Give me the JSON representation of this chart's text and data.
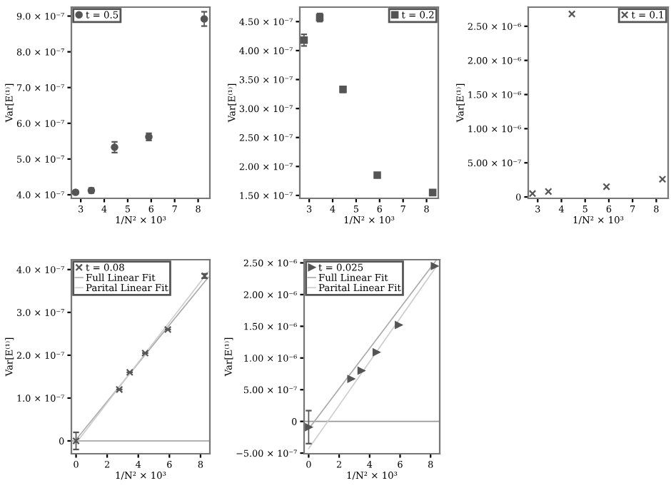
{
  "chart_data": [
    {
      "type": "scatter",
      "xlabel": "1/N² × 10³",
      "ylabel": "Var[E⁽¹⁾]",
      "xlim": [
        2.6,
        8.5
      ],
      "ylim": [
        3.9e-07,
        9.25e-07
      ],
      "xticks": [
        3,
        4,
        5,
        6,
        7,
        8
      ],
      "yticks": [
        {
          "value": 4e-07,
          "label": "4.0 × 10⁻⁷"
        },
        {
          "value": 5e-07,
          "label": "5.0 × 10⁻⁷"
        },
        {
          "value": 6e-07,
          "label": "6.0 × 10⁻⁷"
        },
        {
          "value": 7e-07,
          "label": "7.0 × 10⁻⁷"
        },
        {
          "value": 8e-07,
          "label": "8.0 × 10⁻⁷"
        },
        {
          "value": 9e-07,
          "label": "9.0 × 10⁻⁷"
        }
      ],
      "legend": "top left",
      "grid": false,
      "series": [
        {
          "name": "t = 0.5",
          "color": "#555555",
          "marker": "circle",
          "x": [
            2.78,
            3.45,
            4.44,
            5.9,
            8.26
          ],
          "values": [
            4.07e-07,
            4.12e-07,
            5.33e-07,
            5.62e-07,
            8.92e-07
          ],
          "errors": [
            5e-09,
            7e-09,
            1.5e-08,
            1e-08,
            2e-08
          ]
        }
      ]
    },
    {
      "type": "scatter",
      "xlabel": "1/N² × 10³",
      "ylabel": "Var[E⁽¹⁾]",
      "xlim": [
        2.6,
        8.5
      ],
      "ylim": [
        1.45e-07,
        4.75e-07
      ],
      "xticks": [
        3,
        4,
        5,
        6,
        7,
        8
      ],
      "yticks": [
        {
          "value": 1.5e-07,
          "label": "1.50 × 10⁻⁷"
        },
        {
          "value": 2e-07,
          "label": "2.00 × 10⁻⁷"
        },
        {
          "value": 2.5e-07,
          "label": "2.50 × 10⁻⁷"
        },
        {
          "value": 3e-07,
          "label": "3.00 × 10⁻⁷"
        },
        {
          "value": 3.5e-07,
          "label": "3.50 × 10⁻⁷"
        },
        {
          "value": 4e-07,
          "label": "4.00 × 10⁻⁷"
        },
        {
          "value": 4.5e-07,
          "label": "4.50 × 10⁻⁷"
        }
      ],
      "legend": "top right",
      "grid": false,
      "series": [
        {
          "name": "t = 0.2",
          "color": "#555555",
          "marker": "square",
          "x": [
            2.78,
            3.45,
            4.44,
            5.9,
            8.26
          ],
          "values": [
            4.18e-07,
            4.57e-07,
            3.33e-07,
            1.85e-07,
            1.55e-07
          ],
          "errors": [
            1e-08,
            7e-09,
            5e-09,
            2e-09,
            2e-09
          ]
        }
      ]
    },
    {
      "type": "scatter",
      "xlabel": "1/N² × 10³",
      "ylabel": "Var[E⁽¹⁾]",
      "xlim": [
        2.6,
        8.5
      ],
      "ylim": [
        -2e-08,
        2.78e-06
      ],
      "xticks": [
        3,
        4,
        5,
        6,
        7,
        8
      ],
      "yticks": [
        0,
        {
          "value": 5e-07,
          "label": "5.00 × 10⁻⁷"
        },
        {
          "value": 1e-06,
          "label": "1.00 × 10⁻⁶"
        },
        {
          "value": 1.5e-06,
          "label": "1.50 × 10⁻⁶"
        },
        {
          "value": 2e-06,
          "label": "2.00 × 10⁻⁶"
        },
        {
          "value": 2.5e-06,
          "label": "2.50 × 10⁻⁶"
        }
      ],
      "legend": "top right",
      "grid": false,
      "series": [
        {
          "name": "t = 0.1",
          "color": "#555555",
          "marker": "cross",
          "x": [
            2.78,
            3.45,
            4.44,
            5.9,
            8.26
          ],
          "values": [
            5e-08,
            8e-08,
            2.68e-06,
            1.5e-07,
            2.6e-07
          ]
        }
      ]
    },
    {
      "type": "scatter",
      "xlabel": "1/N² × 10³",
      "ylabel": "Var[E⁽¹⁾]",
      "xlim": [
        -0.3,
        8.6
      ],
      "ylim": [
        -3e-08,
        4.23e-07
      ],
      "xticks": [
        0,
        2,
        4,
        6,
        8
      ],
      "yticks": [
        0,
        {
          "value": 1e-07,
          "label": "1.0 × 10⁻⁷"
        },
        {
          "value": 2e-07,
          "label": "2.0 × 10⁻⁷"
        },
        {
          "value": 3e-07,
          "label": "3.0 × 10⁻⁷"
        },
        {
          "value": 4e-07,
          "label": "4.0 × 10⁻⁷"
        }
      ],
      "legend": "top left",
      "grid": false,
      "ref_lines": [
        {
          "axis": "y",
          "value": 0,
          "color": "#999999"
        }
      ],
      "series": [
        {
          "name": "t = 0.08",
          "color": "#555555",
          "marker": "cross",
          "x": [
            0,
            2.78,
            3.45,
            4.44,
            5.9,
            8.26
          ],
          "values": [
            0,
            1.2e-07,
            1.6e-07,
            2.05e-07,
            2.6e-07,
            3.85e-07
          ],
          "errors": [
            2e-08,
            null,
            null,
            null,
            null,
            5e-09
          ]
        },
        {
          "name": "Full Linear Fit",
          "type": "line",
          "color": "#aaaaaa",
          "x": [
            0,
            8.5
          ],
          "values": [
            3e-09,
            3.82e-07
          ]
        },
        {
          "name": "Parital Linear Fit",
          "type": "line",
          "color": "#cccccc",
          "x": [
            0,
            8.5
          ],
          "values": [
            -5e-09,
            3.95e-07
          ]
        }
      ]
    },
    {
      "type": "scatter",
      "xlabel": "1/N² × 10³",
      "ylabel": "Var[E⁽¹⁾]",
      "xlim": [
        -0.3,
        8.6
      ],
      "ylim": [
        -5.1e-07,
        2.55e-06
      ],
      "xticks": [
        0,
        2,
        4,
        6,
        8
      ],
      "yticks": [
        {
          "value": -5e-07,
          "label": "−5.00 × 10⁻⁷"
        },
        0,
        {
          "value": 5e-07,
          "label": "5.00 × 10⁻⁷"
        },
        {
          "value": 1e-06,
          "label": "1.00 × 10⁻⁶"
        },
        {
          "value": 1.5e-06,
          "label": "1.50 × 10⁻⁶"
        },
        {
          "value": 2e-06,
          "label": "2.00 × 10⁻⁶"
        },
        {
          "value": 2.5e-06,
          "label": "2.50 × 10⁻⁶"
        }
      ],
      "legend": "top left",
      "grid": false,
      "ref_lines": [
        {
          "axis": "y",
          "value": 0,
          "color": "#999999"
        }
      ],
      "series": [
        {
          "name": "t = 0.025",
          "color": "#555555",
          "marker": "triangle",
          "x": [
            0,
            2.78,
            3.45,
            4.44,
            5.9,
            8.26
          ],
          "values": [
            -9e-08,
            6.7e-07,
            8e-07,
            1.09e-06,
            1.52e-06,
            2.45e-06
          ],
          "errors": [
            2.6e-07,
            null,
            null,
            null,
            null,
            null
          ]
        },
        {
          "name": "Full Linear Fit",
          "type": "line",
          "color": "#aaaaaa",
          "x": [
            0,
            8.4
          ],
          "values": [
            -1.2e-07,
            2.55e-06
          ]
        },
        {
          "name": "Parital Linear Fit",
          "type": "line",
          "color": "#cccccc",
          "x": [
            0,
            8.4
          ],
          "values": [
            -4.3e-07,
            2.45e-06
          ]
        }
      ]
    }
  ]
}
